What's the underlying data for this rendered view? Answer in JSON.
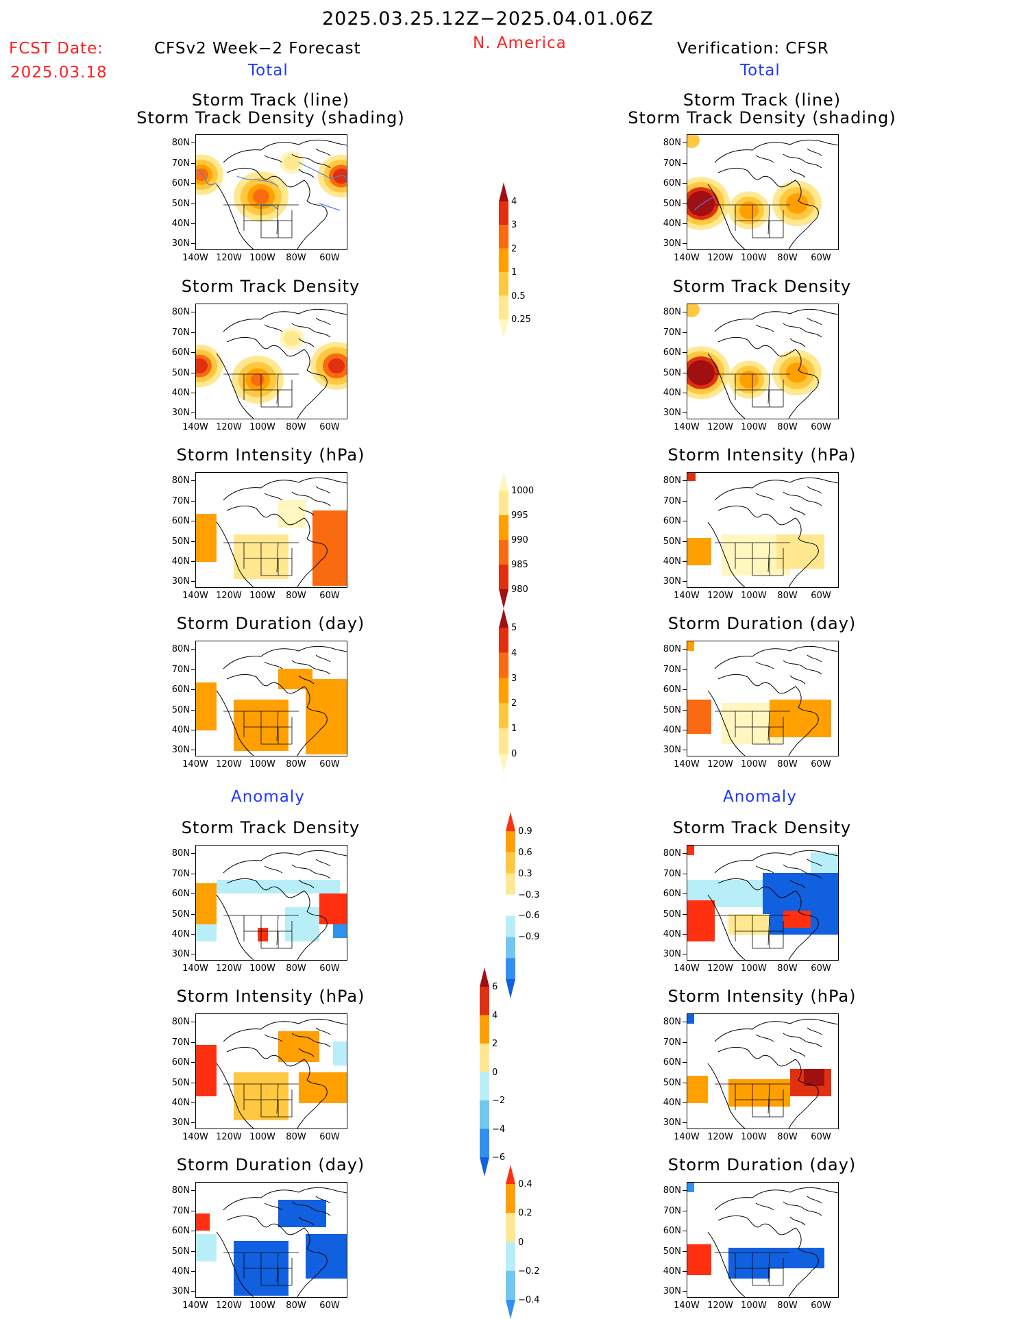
{
  "header": {
    "date_range": "2025.03.25.12Z−2025.04.01.06Z",
    "fcst_label": "FCST Date:",
    "fcst_date": "2025.03.18",
    "left_title": "CFSv2 Week−2 Forecast",
    "region": "N. America",
    "right_title": "Verification: CFSR",
    "total_left": "Total",
    "total_right": "Total",
    "anomaly_left": "Anomaly",
    "anomaly_right": "Anomaly"
  },
  "axes": {
    "lat_labels": [
      "80N",
      "70N",
      "60N",
      "50N",
      "40N",
      "30N"
    ],
    "lon_labels": [
      "140W",
      "120W",
      "100W",
      "80W",
      "60W"
    ]
  },
  "panels": {
    "total_track": {
      "title_line1": "Storm Track (line)",
      "title_line2": "Storm Track Density (shading)"
    },
    "total_density": {
      "title": "Storm Track Density"
    },
    "total_intensity": {
      "title": "Storm Intensity (hPa)"
    },
    "total_duration": {
      "title": "Storm Duration (day)"
    },
    "anom_density": {
      "title": "Storm Track Density"
    },
    "anom_intensity": {
      "title": "Storm Intensity (hPa)"
    },
    "anom_duration": {
      "title": "Storm Duration (day)"
    }
  },
  "colorbars": {
    "density": {
      "labels": [
        "4",
        "3",
        "2",
        "1",
        "0.5",
        "0.25"
      ],
      "colors": [
        "#a01010",
        "#e03010",
        "#fa6a10",
        "#ffa000",
        "#ffc840",
        "#ffe890",
        "#fff6c0"
      ]
    },
    "intensity": {
      "labels": [
        "1000",
        "995",
        "990",
        "985",
        "980"
      ],
      "colors": [
        "#fff6c0",
        "#ffe890",
        "#ffa000",
        "#fa6a10",
        "#e03010",
        "#a01010"
      ]
    },
    "duration": {
      "labels": [
        "5",
        "4",
        "3",
        "2",
        "1",
        "0"
      ],
      "colors": [
        "#a01010",
        "#e03010",
        "#fa6a10",
        "#ffa000",
        "#ffc840",
        "#ffe890",
        "#fff6c0"
      ]
    },
    "anom_density": {
      "labels": [
        "0.9",
        "0.6",
        "0.3",
        "−0.3",
        "−0.6",
        "−0.9"
      ],
      "colors": [
        "#ff3010",
        "#ffa000",
        "#ffc840",
        "#ffe890",
        "#ffffff",
        "#b8eef8",
        "#70c8f0",
        "#3090f0",
        "#1060e0"
      ]
    },
    "anom_intensity": {
      "labels": [
        "6",
        "4",
        "2",
        "0",
        "−2",
        "−4",
        "−6"
      ],
      "colors": [
        "#a01010",
        "#e03010",
        "#ffa000",
        "#ffe890",
        "#b8eef8",
        "#70c8f0",
        "#3090f0",
        "#1060e0"
      ]
    },
    "anom_duration": {
      "labels": [
        "0.4",
        "0.2",
        "0",
        "−0.2",
        "−0.4"
      ],
      "colors": [
        "#ff3010",
        "#ffa000",
        "#ffe890",
        "#b8eef8",
        "#70c8f0",
        "#3090f0"
      ]
    }
  }
}
